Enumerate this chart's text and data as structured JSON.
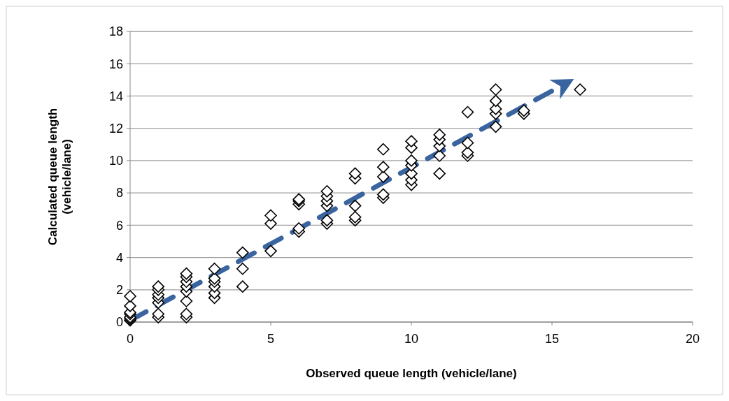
{
  "chart_data": {
    "type": "scatter",
    "xlabel": "Observed queue  length (vehicle/lane)",
    "ylabel": "Calculated queue length\n(vehicle/lane)",
    "xlim": [
      0,
      20
    ],
    "xticks": [
      0,
      5,
      10,
      15,
      20
    ],
    "ylim": [
      0,
      18
    ],
    "yticks": [
      0,
      2,
      4,
      6,
      8,
      10,
      12,
      14,
      16,
      18
    ],
    "grid": "y",
    "series": [
      {
        "color": "#000000",
        "marker": "diamond",
        "x": [
          0,
          0,
          0,
          0,
          0,
          0,
          0,
          1,
          1,
          1,
          1,
          1,
          1,
          1,
          2,
          2,
          2,
          2,
          2,
          2,
          2,
          2,
          3,
          3,
          3,
          3,
          3,
          3,
          4,
          4,
          4,
          5,
          5,
          5,
          6,
          6,
          6,
          6,
          6,
          7,
          7,
          7,
          7,
          7,
          7,
          8,
          8,
          8,
          8,
          8,
          9,
          9,
          9,
          9,
          9,
          10,
          10,
          10,
          10,
          10,
          10,
          10,
          11,
          11,
          11,
          11,
          11,
          12,
          12,
          12,
          12,
          13,
          13,
          13,
          13,
          13,
          14,
          14,
          16
        ],
        "values": [
          0.1,
          0.2,
          0.3,
          0.5,
          0.6,
          1.0,
          1.6,
          0.3,
          0.5,
          1.2,
          1.5,
          1.7,
          2.0,
          2.2,
          0.3,
          0.5,
          1.3,
          1.9,
          2.2,
          2.5,
          2.8,
          3.0,
          1.5,
          1.8,
          2.2,
          2.5,
          2.7,
          3.3,
          2.2,
          3.3,
          4.3,
          4.4,
          6.1,
          6.6,
          5.6,
          5.8,
          7.3,
          7.5,
          7.6,
          6.1,
          6.3,
          7.2,
          7.5,
          7.8,
          8.1,
          6.3,
          6.5,
          7.2,
          8.9,
          9.2,
          7.7,
          7.9,
          9.0,
          9.6,
          10.7,
          8.5,
          8.8,
          9.2,
          9.7,
          10.0,
          10.8,
          11.2,
          9.2,
          10.3,
          10.9,
          11.3,
          11.6,
          10.3,
          10.5,
          11.1,
          13.0,
          12.1,
          12.9,
          13.2,
          13.7,
          14.4,
          12.9,
          13.1,
          14.4
        ]
      },
      {
        "type": "line",
        "color": "#3a64a0",
        "line_style": "dashed",
        "marker": "none",
        "x": [
          0,
          15.3
        ],
        "values": [
          0.1,
          14.6
        ]
      }
    ]
  }
}
